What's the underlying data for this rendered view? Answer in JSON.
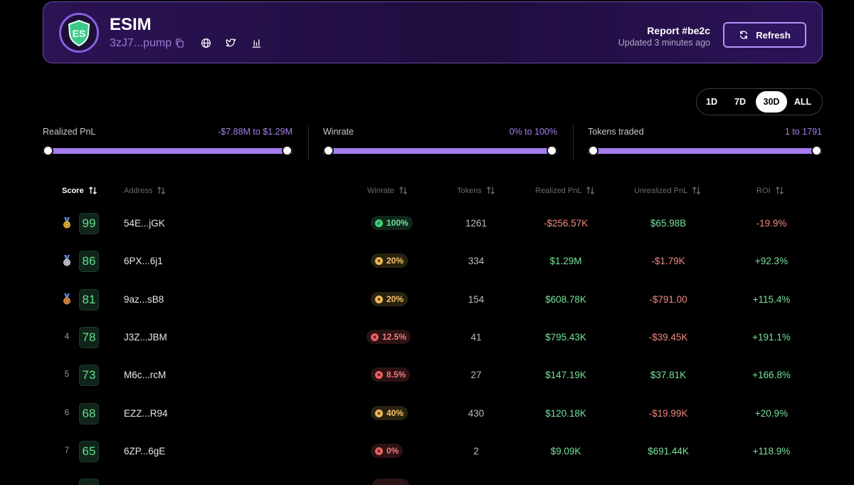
{
  "header": {
    "token_name": "ESIM",
    "token_address": "3zJ7...pump",
    "report_title": "Report #be2c",
    "updated": "Updated 3 minutes ago",
    "refresh_label": "Refresh",
    "logo_text": "ES"
  },
  "timerange": {
    "options": [
      "1D",
      "7D",
      "30D",
      "ALL"
    ],
    "selected": "30D"
  },
  "filters": {
    "realized_pnl": {
      "label": "Realized PnL",
      "range": "-$7.88M to $1.29M"
    },
    "winrate": {
      "label": "Winrate",
      "range": "0% to 100%"
    },
    "tokens_traded": {
      "label": "Tokens traded",
      "range": "1 to 1791"
    }
  },
  "table": {
    "columns": {
      "score": "Score",
      "address": "Address",
      "winrate": "Winrate",
      "tokens": "Tokens",
      "realized_pnl": "Realized PnL",
      "unrealized_pnl": "Unrealized PnL",
      "roi": "ROI"
    },
    "rows": [
      {
        "rank": "",
        "medal": "gold",
        "score": "99",
        "address": "54E...jGK",
        "winrate": "100%",
        "winrate_level": "green",
        "winrate_mark": "✓",
        "tokens": "1261",
        "realized": "-$256.57K",
        "realized_sign": "neg",
        "unrealized": "$65.98B",
        "unrealized_sign": "pos",
        "roi": "-19.9%",
        "roi_sign": "neg"
      },
      {
        "rank": "",
        "medal": "silver",
        "score": "86",
        "address": "6PX...6j1",
        "winrate": "20%",
        "winrate_level": "yellow",
        "winrate_mark": "×",
        "tokens": "334",
        "realized": "$1.29M",
        "realized_sign": "pos",
        "unrealized": "-$1.79K",
        "unrealized_sign": "neg",
        "roi": "+92.3%",
        "roi_sign": "pos"
      },
      {
        "rank": "",
        "medal": "bronze",
        "score": "81",
        "address": "9az...sB8",
        "winrate": "20%",
        "winrate_level": "yellow",
        "winrate_mark": "×",
        "tokens": "154",
        "realized": "$608.78K",
        "realized_sign": "pos",
        "unrealized": "-$791.00",
        "unrealized_sign": "neg",
        "roi": "+115.4%",
        "roi_sign": "pos"
      },
      {
        "rank": "4",
        "medal": "",
        "score": "78",
        "address": "J3Z...JBM",
        "winrate": "12.5%",
        "winrate_level": "red",
        "winrate_mark": "×",
        "tokens": "41",
        "realized": "$795.43K",
        "realized_sign": "pos",
        "unrealized": "-$39.45K",
        "unrealized_sign": "neg",
        "roi": "+191.1%",
        "roi_sign": "pos"
      },
      {
        "rank": "5",
        "medal": "",
        "score": "73",
        "address": "M6c...rcM",
        "winrate": "8.5%",
        "winrate_level": "red",
        "winrate_mark": "×",
        "tokens": "27",
        "realized": "$147.19K",
        "realized_sign": "pos",
        "unrealized": "$37.81K",
        "unrealized_sign": "pos",
        "roi": "+166.8%",
        "roi_sign": "pos"
      },
      {
        "rank": "6",
        "medal": "",
        "score": "68",
        "address": "EZZ...R94",
        "winrate": "40%",
        "winrate_level": "yellow",
        "winrate_mark": "×",
        "tokens": "430",
        "realized": "$120.18K",
        "realized_sign": "pos",
        "unrealized": "-$19.99K",
        "unrealized_sign": "neg",
        "roi": "+20.9%",
        "roi_sign": "pos"
      },
      {
        "rank": "7",
        "medal": "",
        "score": "65",
        "address": "6ZP...6gE",
        "winrate": "0%",
        "winrate_level": "red",
        "winrate_mark": "×",
        "tokens": "2",
        "realized": "$9.09K",
        "realized_sign": "pos",
        "unrealized": "$691.44K",
        "unrealized_sign": "pos",
        "roi": "+118.9%",
        "roi_sign": "pos"
      }
    ]
  },
  "colors": {
    "accent": "#a67cf0",
    "positive": "#76e29a",
    "negative": "#f08a80",
    "gold": "#e8b23a",
    "silver": "#c8ccd4",
    "bronze": "#d98b4a"
  }
}
